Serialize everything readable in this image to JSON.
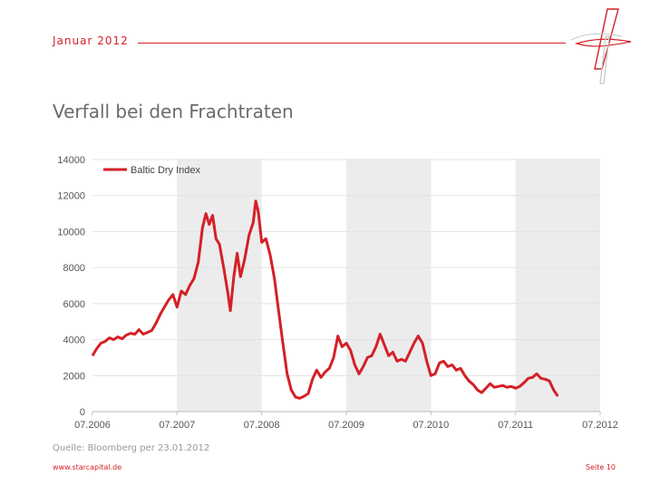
{
  "header": {
    "date": "Januar  2012"
  },
  "title": "Verfall bei den Frachtraten",
  "source": "Quelle: Bloomberg per 23.01.2012",
  "footer": {
    "url": "www.starcapital.de",
    "page": "Seite 10"
  },
  "colors": {
    "accent": "#d42027",
    "band": "#ececec",
    "grid": "#ffffff"
  },
  "chart_data": {
    "type": "line",
    "title": "",
    "xlabel": "",
    "ylabel": "",
    "ylim": [
      0,
      14000
    ],
    "yticks": [
      0,
      2000,
      4000,
      6000,
      8000,
      10000,
      12000,
      14000
    ],
    "ytick_labels": [
      "0",
      "2000",
      "4000",
      "6000",
      "8000",
      "10000",
      "12000",
      "14000"
    ],
    "xlim": [
      2006.5,
      2012.5
    ],
    "xticks": [
      2006.5,
      2007.5,
      2008.5,
      2009.5,
      2010.5,
      2011.5,
      2012.5
    ],
    "xtick_labels": [
      "07.2006",
      "07.2007",
      "07.2008",
      "07.2009",
      "07.2010",
      "07.2011",
      "07.2012"
    ],
    "legend": {
      "position": "top-left",
      "entries": [
        "Baltic Dry Index"
      ]
    },
    "series": [
      {
        "name": "Baltic Dry Index",
        "color": "#d42027",
        "points": [
          [
            2006.5,
            3100
          ],
          [
            2006.55,
            3500
          ],
          [
            2006.6,
            3800
          ],
          [
            2006.65,
            3900
          ],
          [
            2006.7,
            4100
          ],
          [
            2006.75,
            4000
          ],
          [
            2006.8,
            4150
          ],
          [
            2006.85,
            4050
          ],
          [
            2006.9,
            4250
          ],
          [
            2006.95,
            4350
          ],
          [
            2007.0,
            4300
          ],
          [
            2007.05,
            4550
          ],
          [
            2007.1,
            4300
          ],
          [
            2007.15,
            4400
          ],
          [
            2007.2,
            4500
          ],
          [
            2007.25,
            4900
          ],
          [
            2007.3,
            5400
          ],
          [
            2007.35,
            5800
          ],
          [
            2007.4,
            6200
          ],
          [
            2007.45,
            6500
          ],
          [
            2007.5,
            5800
          ],
          [
            2007.55,
            6700
          ],
          [
            2007.6,
            6500
          ],
          [
            2007.65,
            7000
          ],
          [
            2007.7,
            7400
          ],
          [
            2007.75,
            8300
          ],
          [
            2007.8,
            10200
          ],
          [
            2007.84,
            11000
          ],
          [
            2007.88,
            10400
          ],
          [
            2007.92,
            10900
          ],
          [
            2007.96,
            9600
          ],
          [
            2008.0,
            9300
          ],
          [
            2008.05,
            8000
          ],
          [
            2008.1,
            6600
          ],
          [
            2008.13,
            5600
          ],
          [
            2008.17,
            7500
          ],
          [
            2008.21,
            8800
          ],
          [
            2008.25,
            7500
          ],
          [
            2008.3,
            8500
          ],
          [
            2008.35,
            9800
          ],
          [
            2008.4,
            10500
          ],
          [
            2008.43,
            11700
          ],
          [
            2008.46,
            11100
          ],
          [
            2008.5,
            9400
          ],
          [
            2008.55,
            9600
          ],
          [
            2008.6,
            8700
          ],
          [
            2008.65,
            7400
          ],
          [
            2008.7,
            5600
          ],
          [
            2008.75,
            3800
          ],
          [
            2008.8,
            2100
          ],
          [
            2008.85,
            1200
          ],
          [
            2008.9,
            800
          ],
          [
            2008.95,
            740
          ],
          [
            2009.0,
            850
          ],
          [
            2009.05,
            1000
          ],
          [
            2009.1,
            1800
          ],
          [
            2009.15,
            2300
          ],
          [
            2009.2,
            1900
          ],
          [
            2009.25,
            2200
          ],
          [
            2009.3,
            2400
          ],
          [
            2009.35,
            3000
          ],
          [
            2009.4,
            4200
          ],
          [
            2009.45,
            3600
          ],
          [
            2009.5,
            3800
          ],
          [
            2009.55,
            3400
          ],
          [
            2009.6,
            2600
          ],
          [
            2009.65,
            2100
          ],
          [
            2009.7,
            2500
          ],
          [
            2009.75,
            3000
          ],
          [
            2009.8,
            3100
          ],
          [
            2009.85,
            3600
          ],
          [
            2009.9,
            4300
          ],
          [
            2009.95,
            3700
          ],
          [
            2010.0,
            3100
          ],
          [
            2010.05,
            3300
          ],
          [
            2010.1,
            2800
          ],
          [
            2010.15,
            2900
          ],
          [
            2010.2,
            2800
          ],
          [
            2010.25,
            3300
          ],
          [
            2010.3,
            3800
          ],
          [
            2010.35,
            4200
          ],
          [
            2010.4,
            3800
          ],
          [
            2010.45,
            2800
          ],
          [
            2010.5,
            2000
          ],
          [
            2010.55,
            2100
          ],
          [
            2010.6,
            2700
          ],
          [
            2010.65,
            2800
          ],
          [
            2010.7,
            2500
          ],
          [
            2010.75,
            2600
          ],
          [
            2010.8,
            2300
          ],
          [
            2010.85,
            2400
          ],
          [
            2010.9,
            2000
          ],
          [
            2010.95,
            1700
          ],
          [
            2011.0,
            1500
          ],
          [
            2011.05,
            1200
          ],
          [
            2011.1,
            1050
          ],
          [
            2011.15,
            1300
          ],
          [
            2011.2,
            1550
          ],
          [
            2011.25,
            1350
          ],
          [
            2011.3,
            1400
          ],
          [
            2011.35,
            1450
          ],
          [
            2011.4,
            1350
          ],
          [
            2011.45,
            1400
          ],
          [
            2011.5,
            1300
          ],
          [
            2011.55,
            1400
          ],
          [
            2011.6,
            1600
          ],
          [
            2011.65,
            1850
          ],
          [
            2011.7,
            1900
          ],
          [
            2011.75,
            2100
          ],
          [
            2011.8,
            1850
          ],
          [
            2011.85,
            1800
          ],
          [
            2011.9,
            1700
          ],
          [
            2011.95,
            1200
          ],
          [
            2012.0,
            850
          ]
        ]
      }
    ]
  }
}
